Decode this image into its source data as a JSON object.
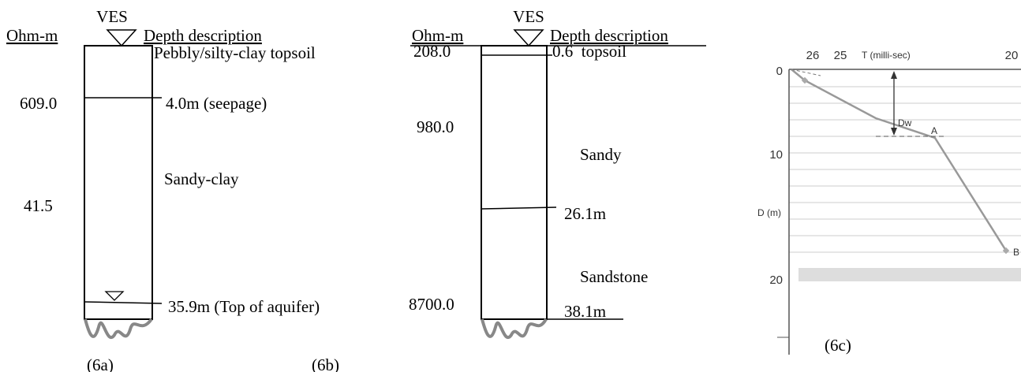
{
  "panel_a": {
    "ves": "VES",
    "resistivity_header": "Ohm-m",
    "depth_header": "Depth description",
    "layer_1": "Pebbly/silty-clay topsoil",
    "resistivity_1": "609.0",
    "depth_1": "4.0m (seepage)",
    "layer_2": "Sandy-clay",
    "resistivity_2": "41.5",
    "depth_2": "35.9m (Top of aquifer)",
    "caption": "(6a)"
  },
  "panel_b": {
    "ves": "VES",
    "resistivity_header": "Ohm-m",
    "depth_header": "Depth description",
    "resistivity_1": "208.0",
    "depth_1": "0.6  topsoil",
    "resistivity_2": "980.0",
    "layer_2": "Sandy",
    "depth_2": "26.1m",
    "layer_3": "Sandstone",
    "resistivity_3": "8700.0",
    "depth_3": "38.1m",
    "caption": "(6b)"
  },
  "panel_c": {
    "x_ticks": [
      "26",
      "25",
      "20"
    ],
    "x_label": "T (milli-sec)",
    "y_ticks": [
      "0",
      "10",
      "20"
    ],
    "y_label": "D (m)",
    "dw_label": "Dw",
    "point_a": "A",
    "point_b": "B",
    "caption": "(6c)"
  }
}
